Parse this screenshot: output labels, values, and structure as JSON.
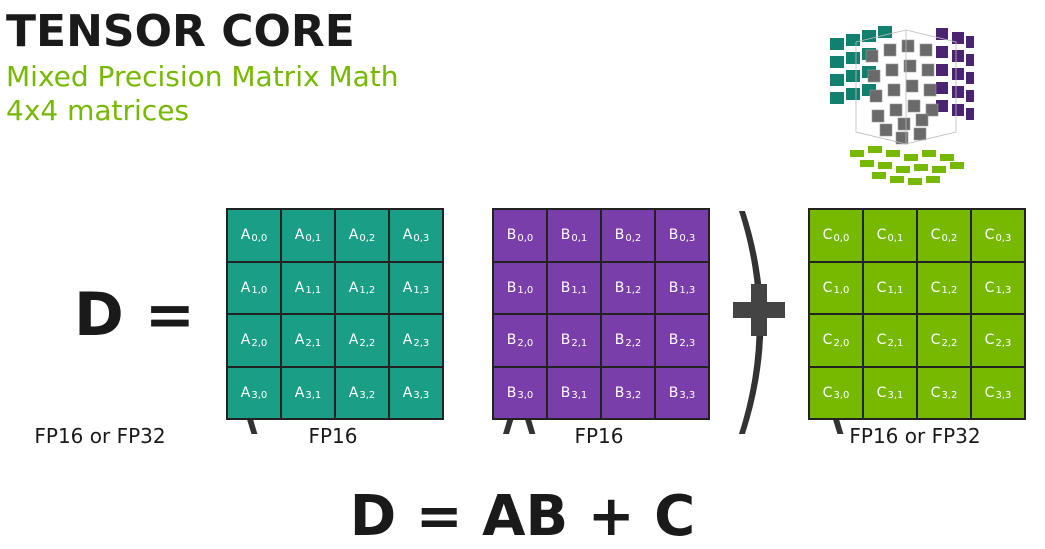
{
  "title": "TENSOR CORE",
  "subtitle_1": "Mixed Precision Matrix Math",
  "subtitle_2": "4x4 matrices",
  "lhs": "D =",
  "plus_symbol": "+",
  "matrices": {
    "A": {
      "letter": "A",
      "color": "#1a9e86",
      "precision": "FP16"
    },
    "B": {
      "letter": "B",
      "color": "#7a3eab",
      "precision": "FP16"
    },
    "C": {
      "letter": "C",
      "color": "#76b900",
      "precision": "FP16 or FP32"
    }
  },
  "d_precision": "FP16 or FP32",
  "formula": "D = AB + C",
  "colors": {
    "green": "#76b900",
    "teal": "#1a9e86",
    "purple": "#7a3eab",
    "dark": "#1a1a1a"
  }
}
